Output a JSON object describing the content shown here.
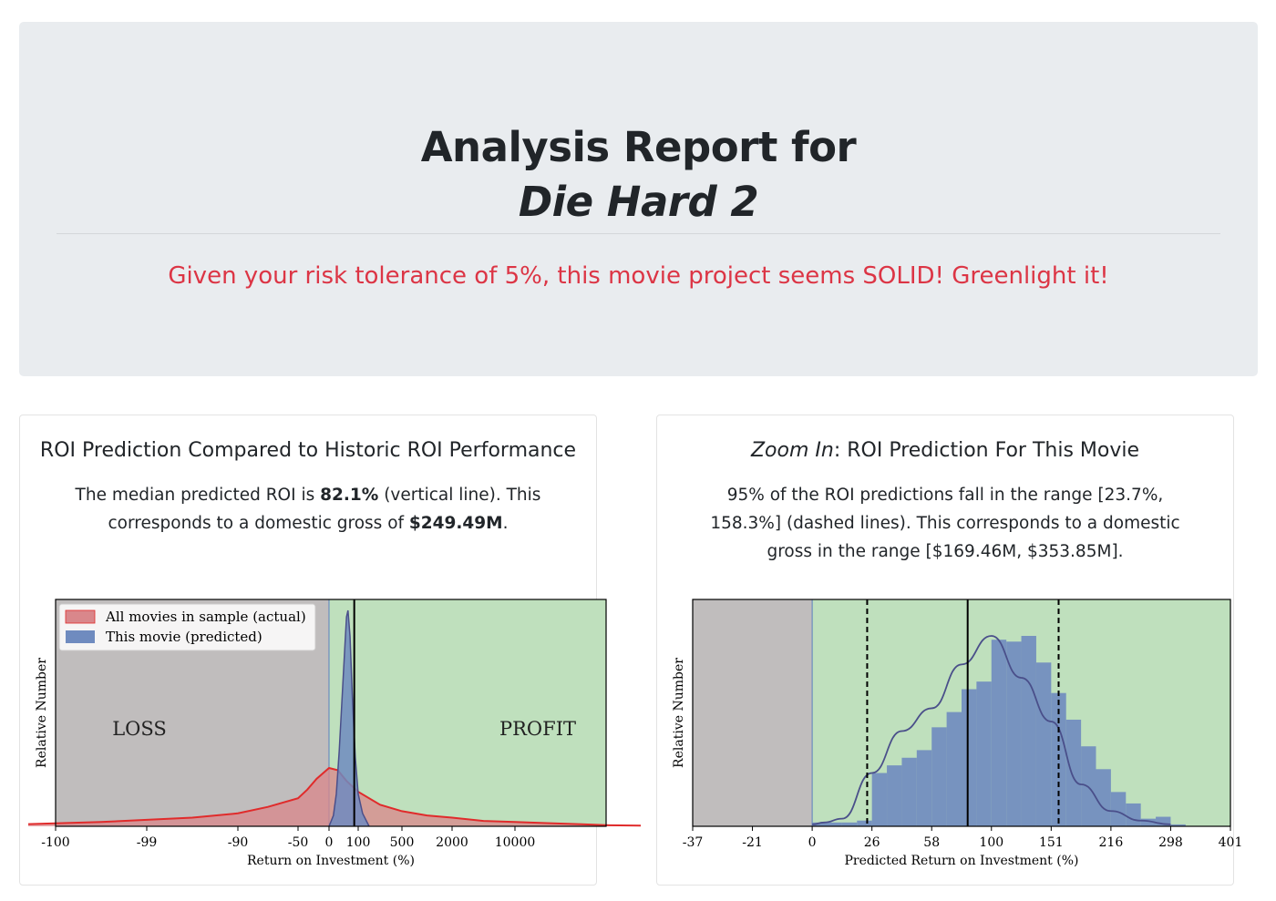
{
  "header": {
    "title_line1": "Analysis Report for",
    "title_movie": "Die Hard 2",
    "verdict": "Given your risk tolerance of 5%, this movie project seems SOLID! Greenlight it!",
    "verdict_color": "#dc3545"
  },
  "left_card": {
    "title": "ROI Prediction Compared to Historic ROI Performance",
    "text_a": "The median predicted ROI is ",
    "median_roi": "82.1%",
    "text_b": " (vertical line). This corresponds to a domestic gross of ",
    "median_gross": "$249.49M",
    "text_c": "."
  },
  "right_card": {
    "title_em": "Zoom In",
    "title_rest": ": ROI Prediction For This Movie",
    "text": "95% of the ROI predictions fall in the range [23.7%, 158.3%] (dashed lines). This corresponds to a domestic gross in the range [$169.46M, $353.85M]."
  },
  "colors": {
    "loss_region": "#c0bdbd",
    "profit_region": "#bfe0bd",
    "actual_hist": "#d9878b",
    "actual_line": "#e02b2b",
    "predicted_hist": "#6f8bbf",
    "predicted_line": "#4a4f8a"
  },
  "chart_data": [
    {
      "type": "area",
      "xlabel": "Return on Investment (%)",
      "ylabel": "Relative Number",
      "x_ticks": [
        "-100",
        "-99",
        "-90",
        "-50",
        "0",
        "100",
        "500",
        "2000",
        "10000"
      ],
      "region_labels": [
        "LOSS",
        "PROFIT"
      ],
      "legend_position": "top-left",
      "series": [
        {
          "name": "All movies in sample (actual)",
          "tick_index": [
            -0.3,
            0.5,
            1,
            1.5,
            2,
            2.5,
            3,
            3.3,
            3.6,
            4,
            4.3,
            4.6,
            5,
            5.5,
            6,
            6.5,
            7,
            7.5,
            8,
            8.5,
            9,
            9.5,
            10
          ],
          "density": [
            0.01,
            0.02,
            0.03,
            0.04,
            0.06,
            0.09,
            0.13,
            0.17,
            0.22,
            0.27,
            0.26,
            0.21,
            0.16,
            0.1,
            0.07,
            0.05,
            0.04,
            0.025,
            0.02,
            0.015,
            0.01,
            0.005,
            0.003
          ]
        },
        {
          "name": "This movie (predicted)",
          "tick_index": [
            4.0,
            4.15,
            4.25,
            4.35,
            4.45,
            4.55,
            4.6,
            4.65,
            4.72,
            4.8,
            4.9,
            5.0,
            5.1,
            5.25
          ],
          "density": [
            0.0,
            0.05,
            0.15,
            0.35,
            0.6,
            0.85,
            0.97,
            1.0,
            0.88,
            0.6,
            0.32,
            0.15,
            0.06,
            0.0
          ]
        }
      ],
      "median_line": 82.1
    },
    {
      "type": "bar",
      "xlabel": "Predicted Return on Investment (%)",
      "ylabel": "Relative Number",
      "x_ticks": [
        "-37",
        "-21",
        "0",
        "26",
        "58",
        "100",
        "151",
        "216",
        "298",
        "401"
      ],
      "series": [
        {
          "name": "",
          "tick_index": [
            2.0,
            2.2,
            2.5,
            3.0,
            3.5,
            4.0,
            4.5,
            5.0,
            5.5,
            6.0,
            6.5,
            7.0,
            7.5,
            8.0
          ],
          "density": [
            0.01,
            0.02,
            0.04,
            0.28,
            0.5,
            0.62,
            0.85,
            1.0,
            0.78,
            0.55,
            0.22,
            0.08,
            0.03,
            0.01
          ]
        }
      ],
      "bars": {
        "tick_index_start": 2.0,
        "bin_width_ticks": 0.25,
        "heights": [
          0.02,
          0.02,
          0.02,
          0.03,
          0.28,
          0.32,
          0.36,
          0.4,
          0.52,
          0.6,
          0.72,
          0.76,
          0.98,
          0.97,
          1.0,
          0.86,
          0.7,
          0.56,
          0.42,
          0.3,
          0.18,
          0.12,
          0.04,
          0.05,
          0.01
        ]
      },
      "median_line": 82.1,
      "interval_lines": [
        23.7,
        158.3
      ]
    }
  ]
}
